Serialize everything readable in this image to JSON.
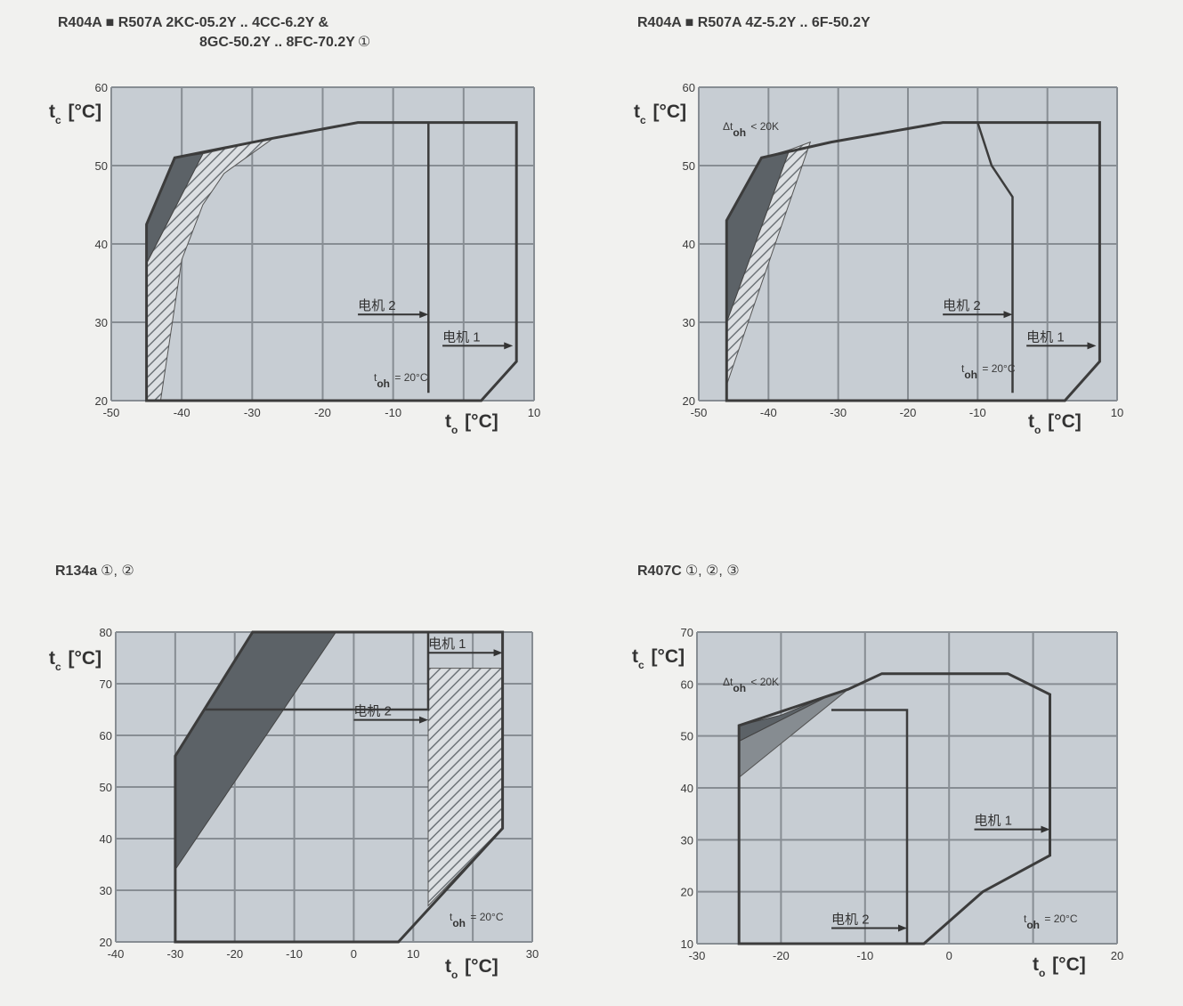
{
  "colors": {
    "plot_bg": "#c7cdd3",
    "grid": "#878d93",
    "border": "#3c3c3c",
    "dark_region": "#5c6267",
    "mid_region": "#868c91",
    "hatch": "#6e7479",
    "background": "#f1f1ef"
  },
  "chart_data": [
    {
      "type": "area",
      "title_line1": "R404A ■ R507A  2KC-05.2Y .. 4CC-6.2Y &",
      "title_line2": "8GC-50.2Y .. 8FC-70.2Y",
      "title_note": "①",
      "ylabel": "t",
      "ylabel_sub": "c",
      "ylabel_unit": "[°C]",
      "xlabel": "t",
      "xlabel_sub": "o",
      "xlabel_unit": "[°C]",
      "xlim": [
        -50,
        10
      ],
      "ylim": [
        20,
        60
      ],
      "xticks": [
        -50,
        -40,
        -30,
        -20,
        -10,
        0,
        10
      ],
      "xtick_labels": [
        "-50",
        "-40",
        "-30",
        "-20",
        "-10",
        "",
        "10"
      ],
      "yticks": [
        20,
        30,
        40,
        50,
        60
      ],
      "ytick_labels": [
        "20",
        "30",
        "40",
        "50",
        "60"
      ],
      "grid": true,
      "envelope_motor1": [
        [
          -45,
          20
        ],
        [
          -45,
          42.5
        ],
        [
          -41,
          51
        ],
        [
          -27,
          53.5
        ],
        [
          -15,
          55.5
        ],
        [
          7.5,
          55.5
        ],
        [
          7.5,
          25
        ],
        [
          2.5,
          20
        ]
      ],
      "envelope_motor2": [
        [
          -5,
          55.5
        ],
        [
          -5,
          21
        ]
      ],
      "dark_region": [
        [
          -45,
          42.5
        ],
        [
          -41,
          51
        ],
        [
          -37,
          51.5
        ],
        [
          -45,
          37.5
        ]
      ],
      "hatched_region": [
        [
          -45,
          37.5
        ],
        [
          -37,
          51.5
        ],
        [
          -27,
          53.5
        ],
        [
          -34,
          49
        ],
        [
          -37,
          45
        ],
        [
          -40,
          38
        ],
        [
          -43,
          20
        ],
        [
          -45,
          20
        ]
      ],
      "motor_1_label": "电机 1",
      "motor_1_arrow": [
        [
          -3,
          27
        ],
        [
          7,
          27
        ]
      ],
      "motor_2_label": "电机 2",
      "motor_2_arrow": [
        [
          -15,
          31
        ],
        [
          -5,
          31
        ]
      ],
      "note": "t",
      "note_sub": "oh",
      "note_rest": " = 20°C"
    },
    {
      "type": "area",
      "title_line1": "R404A ■ R507A  4Z-5.2Y .. 6F-50.2Y",
      "ylabel": "t",
      "ylabel_sub": "c",
      "ylabel_unit": "[°C]",
      "xlabel": "t",
      "xlabel_sub": "o",
      "xlabel_unit": "[°C]",
      "xlim": [
        -50,
        10
      ],
      "ylim": [
        20,
        60
      ],
      "xticks": [
        -50,
        -40,
        -30,
        -20,
        -10,
        0,
        10
      ],
      "xtick_labels": [
        "-50",
        "-40",
        "-30",
        "-20",
        "-10",
        "",
        "10"
      ],
      "yticks": [
        20,
        30,
        40,
        50,
        60
      ],
      "ytick_labels": [
        "20",
        "30",
        "40",
        "50",
        "60"
      ],
      "grid": true,
      "envelope_motor1": [
        [
          -46,
          20
        ],
        [
          -46,
          43
        ],
        [
          -41,
          51
        ],
        [
          -31,
          53
        ],
        [
          -15,
          55.5
        ],
        [
          7.5,
          55.5
        ],
        [
          7.5,
          25
        ],
        [
          2.5,
          20
        ]
      ],
      "envelope_motor2": [
        [
          -10,
          55.5
        ],
        [
          -8,
          50
        ],
        [
          -5,
          46
        ],
        [
          -5,
          21
        ]
      ],
      "dark_region": [
        [
          -46,
          43
        ],
        [
          -41,
          51
        ],
        [
          -37,
          52
        ],
        [
          -46,
          30
        ]
      ],
      "hatched_region": [
        [
          -46,
          30
        ],
        [
          -37,
          52
        ],
        [
          -34,
          53
        ],
        [
          -46,
          22
        ]
      ],
      "motor_1_label": "电机 1",
      "motor_1_arrow": [
        [
          -3,
          27
        ],
        [
          7,
          27
        ]
      ],
      "motor_2_label": "电机 2",
      "motor_2_arrow": [
        [
          -15,
          31
        ],
        [
          -5,
          31
        ]
      ],
      "annotation": "Δt",
      "annotation_sub": "oh",
      "annotation_rest": " < 20K",
      "note": "t",
      "note_sub": "oh",
      "note_rest": " = 20°C"
    },
    {
      "type": "area",
      "title_line1": "R134a",
      "title_note": "①, ②",
      "ylabel": "t",
      "ylabel_sub": "c",
      "ylabel_unit": "[°C]",
      "xlabel": "t",
      "xlabel_sub": "o",
      "xlabel_unit": "[°C]",
      "xlim": [
        -40,
        30
      ],
      "ylim": [
        20,
        80
      ],
      "xticks": [
        -40,
        -30,
        -20,
        -10,
        0,
        10,
        20,
        30
      ],
      "xtick_labels": [
        "-40",
        "-30",
        "-20",
        "-10",
        "0",
        "10",
        "",
        "30"
      ],
      "yticks": [
        20,
        30,
        40,
        50,
        60,
        70,
        80
      ],
      "ytick_labels": [
        "20",
        "30",
        "40",
        "50",
        "60",
        "70",
        "80"
      ],
      "grid": true,
      "envelope_motor1": [
        [
          -30,
          20
        ],
        [
          -30,
          56
        ],
        [
          -17,
          80
        ],
        [
          25,
          80
        ],
        [
          25,
          42
        ],
        [
          7.5,
          20
        ]
      ],
      "envelope_motor2": [
        [
          -25,
          65
        ],
        [
          12.5,
          65
        ],
        [
          12.5,
          80
        ]
      ],
      "dark_region": [
        [
          -30,
          56
        ],
        [
          -17,
          80
        ],
        [
          -3,
          80
        ],
        [
          -30,
          34
        ]
      ],
      "hatched_region": [
        [
          12.5,
          73
        ],
        [
          25,
          73
        ],
        [
          25,
          42
        ],
        [
          12.5,
          27
        ]
      ],
      "motor_1_label": "电机 1",
      "motor_1_arrow": [
        [
          12.5,
          76
        ],
        [
          25,
          76
        ]
      ],
      "motor_2_label": "电机 2",
      "motor_2_arrow": [
        [
          0,
          63
        ],
        [
          12.5,
          63
        ]
      ],
      "note": "t",
      "note_sub": "oh",
      "note_rest": " = 20°C"
    },
    {
      "type": "area",
      "title_line1": "R407C",
      "title_note": "①, ②, ③",
      "ylabel": "t",
      "ylabel_sub": "c",
      "ylabel_unit": "[°C]",
      "xlabel": "t",
      "xlabel_sub": "o",
      "xlabel_unit": "[°C]",
      "xlim": [
        -30,
        20
      ],
      "ylim": [
        10,
        70
      ],
      "xticks": [
        -30,
        -20,
        -10,
        0,
        10,
        20
      ],
      "xtick_labels": [
        "-30",
        "-20",
        "-10",
        "0",
        "",
        "20"
      ],
      "yticks": [
        10,
        20,
        30,
        40,
        50,
        60,
        70
      ],
      "ytick_labels": [
        "10",
        "20",
        "30",
        "40",
        "50",
        "60",
        "70"
      ],
      "grid": true,
      "envelope_motor1": [
        [
          -25,
          10
        ],
        [
          -25,
          52
        ],
        [
          -12,
          59
        ],
        [
          -8,
          62
        ],
        [
          7,
          62
        ],
        [
          12,
          58
        ],
        [
          12,
          27
        ],
        [
          4,
          20
        ],
        [
          -3,
          10
        ]
      ],
      "envelope_motor2": [
        [
          -14,
          55
        ],
        [
          -5,
          55
        ],
        [
          -5,
          10
        ]
      ],
      "dark_region": [
        [
          -25,
          52
        ],
        [
          -20,
          54
        ],
        [
          -14,
          58
        ],
        [
          -25,
          49
        ]
      ],
      "mid_region": [
        [
          -25,
          49
        ],
        [
          -14,
          58
        ],
        [
          -12,
          59
        ],
        [
          -25,
          42
        ]
      ],
      "motor_1_label": "电机 1",
      "motor_1_arrow": [
        [
          3,
          32
        ],
        [
          12,
          32
        ]
      ],
      "motor_2_label": "电机 2",
      "motor_2_arrow": [
        [
          -14,
          13
        ],
        [
          -5,
          13
        ]
      ],
      "annotation": "Δt",
      "annotation_sub": "oh",
      "annotation_rest": " < 20K",
      "note": "t",
      "note_sub": "oh",
      "note_rest": " = 20°C"
    }
  ]
}
